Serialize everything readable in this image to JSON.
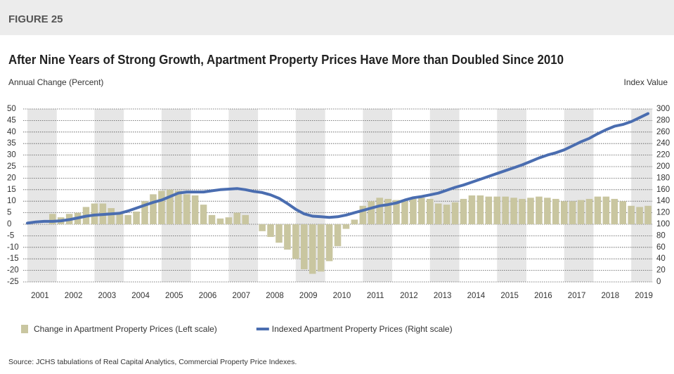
{
  "figure_label": "FIGURE 25",
  "chart_data": {
    "type": "combo",
    "title": "After Nine Years of Strong Growth, Apartment Property Prices Have More than Doubled Since 2010",
    "y_label": "Annual Change (Percent)",
    "y2_label": "Index Value",
    "source": "Source: JCHS tabulations of Real Capital Analytics, Commercial Property Price Indexes.",
    "categories": [
      "2001",
      null,
      null,
      null,
      "2002",
      null,
      null,
      null,
      "2003",
      null,
      null,
      null,
      "2004",
      null,
      null,
      null,
      "2005",
      null,
      null,
      null,
      "2006",
      null,
      null,
      null,
      "2007",
      null,
      null,
      null,
      "2008",
      null,
      null,
      null,
      "2009",
      null,
      null,
      null,
      "2010",
      null,
      null,
      null,
      "2011",
      null,
      null,
      null,
      "2012",
      null,
      null,
      null,
      "2013",
      null,
      null,
      null,
      "2014",
      null,
      null,
      null,
      "2015",
      null,
      null,
      null,
      "2016",
      null,
      null,
      null,
      "2017",
      null,
      null,
      null,
      "2018",
      null,
      null,
      null,
      "2019",
      null,
      null
    ],
    "series": [
      {
        "name": "Change in Apartment Property Prices (Left scale)",
        "type": "bar",
        "color": "#c9c6a0",
        "values": [
          null,
          null,
          null,
          4.5,
          3,
          4.5,
          5,
          7.5,
          9,
          9,
          7,
          5,
          4,
          5.5,
          10,
          13,
          14.5,
          15,
          14.5,
          13,
          12.5,
          8.5,
          4,
          2.5,
          3,
          5,
          4,
          null,
          -3,
          -5.5,
          -8,
          -11,
          -15,
          -19.5,
          -21.5,
          -20.5,
          -16,
          -9.5,
          -2,
          2,
          8,
          10,
          11.5,
          11,
          10.5,
          10,
          11,
          11.5,
          11,
          9,
          8.5,
          9.5,
          11,
          12.5,
          12.5,
          12,
          12,
          12,
          11.5,
          11,
          11.5,
          12,
          11.5,
          11,
          10,
          10,
          10.5,
          11,
          12,
          12,
          11,
          10,
          8,
          7.5,
          8
        ]
      },
      {
        "name": "Indexed Apartment Property Prices (Right scale)",
        "type": "line",
        "axis": "y2",
        "color": "#4a6db0",
        "values": [
          102,
          104,
          105,
          105,
          106,
          108,
          111,
          114,
          116,
          117,
          118,
          119,
          123,
          128,
          133,
          138,
          142,
          148,
          154,
          156,
          156,
          156,
          158,
          160,
          161,
          162,
          160,
          157,
          155,
          151,
          145,
          136,
          126,
          118,
          114,
          113,
          112,
          113,
          116,
          120,
          124,
          128,
          132,
          134,
          137,
          142,
          146,
          148,
          151,
          154,
          159,
          164,
          168,
          173,
          178,
          183,
          188,
          193,
          198,
          203,
          209,
          215,
          220,
          224,
          229,
          236,
          243,
          249,
          257,
          264,
          270,
          273,
          278,
          285,
          292
        ]
      }
    ],
    "ylim": [
      -25,
      50
    ],
    "yticks": [
      -25,
      -20,
      -15,
      -10,
      -5,
      0,
      5,
      10,
      15,
      20,
      25,
      30,
      35,
      40,
      45,
      50
    ],
    "y2lim": [
      0,
      300
    ],
    "y2ticks": [
      0,
      20,
      40,
      60,
      80,
      100,
      120,
      140,
      160,
      180,
      200,
      220,
      240,
      260,
      280,
      300
    ],
    "grid": true
  }
}
